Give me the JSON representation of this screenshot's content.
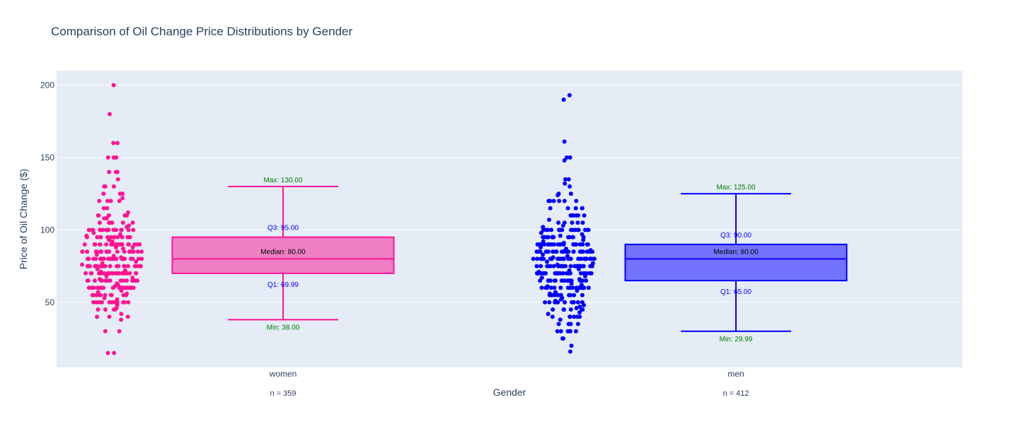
{
  "chart_data": {
    "type": "box",
    "title": "Comparison of Oil Change Price Distributions by Gender",
    "xlabel": "Gender",
    "ylabel": "Price of Oil Change ($)",
    "ylim": [
      5,
      210
    ],
    "yticks": [
      50,
      100,
      150,
      200
    ],
    "categories": [
      "women",
      "men"
    ],
    "series": [
      {
        "name": "women",
        "color": "#ff1493",
        "fill": "#f07fc5",
        "n_label": "n = 359",
        "min": 38.0,
        "q1": 69.99,
        "median": 80.0,
        "q3": 95.0,
        "max": 130.0,
        "labels": {
          "max": "Max: 130.00",
          "q3": "Q3: 95.00",
          "median": "Median: 80.00",
          "q1": "Q1: 69.99",
          "min": "Min: 38.00"
        },
        "points": [
          200,
          180,
          160,
          160,
          150,
          150,
          150,
          150,
          150,
          140,
          140,
          140,
          135,
          130,
          130,
          130,
          125,
          125,
          125,
          122,
          120,
          120,
          120,
          120,
          115,
          115,
          112,
          110,
          110,
          110,
          110,
          110,
          110,
          108,
          108,
          105,
          105,
          105,
          105,
          105,
          105,
          103,
          102,
          100,
          100,
          100,
          100,
          100,
          100,
          100,
          100,
          100,
          100,
          100,
          100,
          100,
          100,
          100,
          100,
          100,
          100,
          98,
          97,
          96,
          95,
          95,
          95,
          95,
          95,
          95,
          95,
          95,
          95,
          95,
          95,
          95,
          93,
          92,
          90,
          90,
          90,
          90,
          90,
          90,
          90,
          90,
          90,
          90,
          90,
          90,
          90,
          90,
          90,
          90,
          90,
          90,
          90,
          90,
          90,
          88,
          88,
          87,
          85,
          85,
          85,
          85,
          85,
          85,
          85,
          85,
          85,
          85,
          85,
          85,
          85,
          85,
          85,
          85,
          85,
          85,
          85,
          85,
          85,
          85,
          83,
          82,
          81,
          80,
          80,
          80,
          80,
          80,
          80,
          80,
          80,
          80,
          80,
          80,
          80,
          80,
          80,
          80,
          80,
          80,
          80,
          80,
          80,
          80,
          80,
          80,
          80,
          80,
          80,
          80,
          80,
          78,
          77,
          76,
          75,
          75,
          75,
          75,
          75,
          75,
          75,
          75,
          75,
          75,
          75,
          75,
          75,
          75,
          75,
          75,
          75,
          75,
          75,
          75,
          75,
          75,
          73,
          72,
          71,
          70,
          70,
          70,
          70,
          70,
          70,
          70,
          70,
          70,
          70,
          70,
          70,
          70,
          70,
          70,
          70,
          70,
          70,
          70,
          70,
          70,
          70,
          70,
          70,
          70,
          70,
          68,
          67,
          66,
          65,
          65,
          65,
          65,
          65,
          65,
          65,
          65,
          65,
          65,
          65,
          65,
          65,
          65,
          65,
          65,
          65,
          65,
          65,
          65,
          63,
          62,
          61,
          60,
          60,
          60,
          60,
          60,
          60,
          60,
          60,
          60,
          60,
          60,
          60,
          60,
          60,
          60,
          60,
          60,
          60,
          60,
          60,
          60,
          58,
          57,
          56,
          55,
          55,
          55,
          55,
          55,
          55,
          55,
          55,
          55,
          55,
          53,
          52,
          50,
          50,
          50,
          50,
          50,
          50,
          50,
          50,
          50,
          50,
          50,
          48,
          46,
          45,
          45,
          45,
          45,
          42,
          40,
          40,
          40,
          38,
          30,
          30,
          15,
          15
        ],
        "x_offset": -0.42
      },
      {
        "name": "men",
        "color": "#0000ff",
        "fill": "#7373ff",
        "n_label": "n = 412",
        "min": 29.99,
        "q1": 65.0,
        "median": 80.0,
        "q3": 90.0,
        "max": 125.0,
        "labels": {
          "max": "Max: 125.00",
          "q3": "Q3: 90.00",
          "median": "Median: 80.00",
          "q1": "Q1: 65.00",
          "min": "Min: 29.99"
        },
        "points": [
          193,
          190,
          161,
          150,
          150,
          148,
          135,
          135,
          132,
          130,
          125,
          125,
          124,
          120,
          120,
          120,
          120,
          120,
          120,
          115,
          115,
          115,
          115,
          115,
          110,
          110,
          110,
          110,
          110,
          110,
          107,
          105,
          105,
          105,
          105,
          105,
          103,
          102,
          100,
          100,
          100,
          100,
          100,
          100,
          100,
          100,
          100,
          100,
          100,
          100,
          100,
          100,
          100,
          100,
          100,
          98,
          97,
          96,
          95,
          95,
          95,
          95,
          95,
          95,
          95,
          95,
          95,
          95,
          95,
          95,
          95,
          95,
          95,
          93,
          92,
          91,
          90,
          90,
          90,
          90,
          90,
          90,
          90,
          90,
          90,
          90,
          90,
          90,
          90,
          90,
          90,
          90,
          90,
          90,
          90,
          90,
          90,
          90,
          90,
          90,
          88,
          87,
          86,
          85,
          85,
          85,
          85,
          85,
          85,
          85,
          85,
          85,
          85,
          85,
          85,
          85,
          85,
          85,
          85,
          85,
          85,
          85,
          85,
          85,
          85,
          85,
          85,
          83,
          82,
          81,
          80,
          80,
          80,
          80,
          80,
          80,
          80,
          80,
          80,
          80,
          80,
          80,
          80,
          80,
          80,
          80,
          80,
          80,
          80,
          80,
          80,
          80,
          80,
          80,
          80,
          80,
          80,
          80,
          80,
          80,
          78,
          77,
          76,
          75,
          75,
          75,
          75,
          75,
          75,
          75,
          75,
          75,
          75,
          75,
          75,
          75,
          75,
          75,
          75,
          75,
          75,
          75,
          75,
          75,
          75,
          75,
          73,
          72,
          71,
          70,
          70,
          70,
          70,
          70,
          70,
          70,
          70,
          70,
          70,
          70,
          70,
          70,
          70,
          70,
          70,
          70,
          70,
          70,
          70,
          70,
          70,
          70,
          70,
          70,
          68,
          67,
          66,
          65,
          65,
          65,
          65,
          65,
          65,
          65,
          65,
          65,
          65,
          65,
          65,
          65,
          65,
          65,
          65,
          65,
          65,
          65,
          65,
          63,
          62,
          61,
          60,
          60,
          60,
          60,
          60,
          60,
          60,
          60,
          60,
          60,
          60,
          60,
          60,
          60,
          60,
          60,
          60,
          60,
          60,
          58,
          57,
          56,
          55,
          55,
          55,
          55,
          55,
          55,
          55,
          55,
          55,
          55,
          55,
          53,
          52,
          51,
          50,
          50,
          50,
          50,
          50,
          50,
          50,
          50,
          50,
          50,
          50,
          50,
          48,
          47,
          46,
          45,
          45,
          45,
          45,
          45,
          45,
          43,
          42,
          40,
          40,
          40,
          40,
          40,
          40,
          38,
          35,
          35,
          35,
          35,
          30,
          30,
          30,
          30,
          30,
          30,
          25,
          25,
          20,
          16
        ],
        "x_offset": -0.42
      }
    ]
  }
}
